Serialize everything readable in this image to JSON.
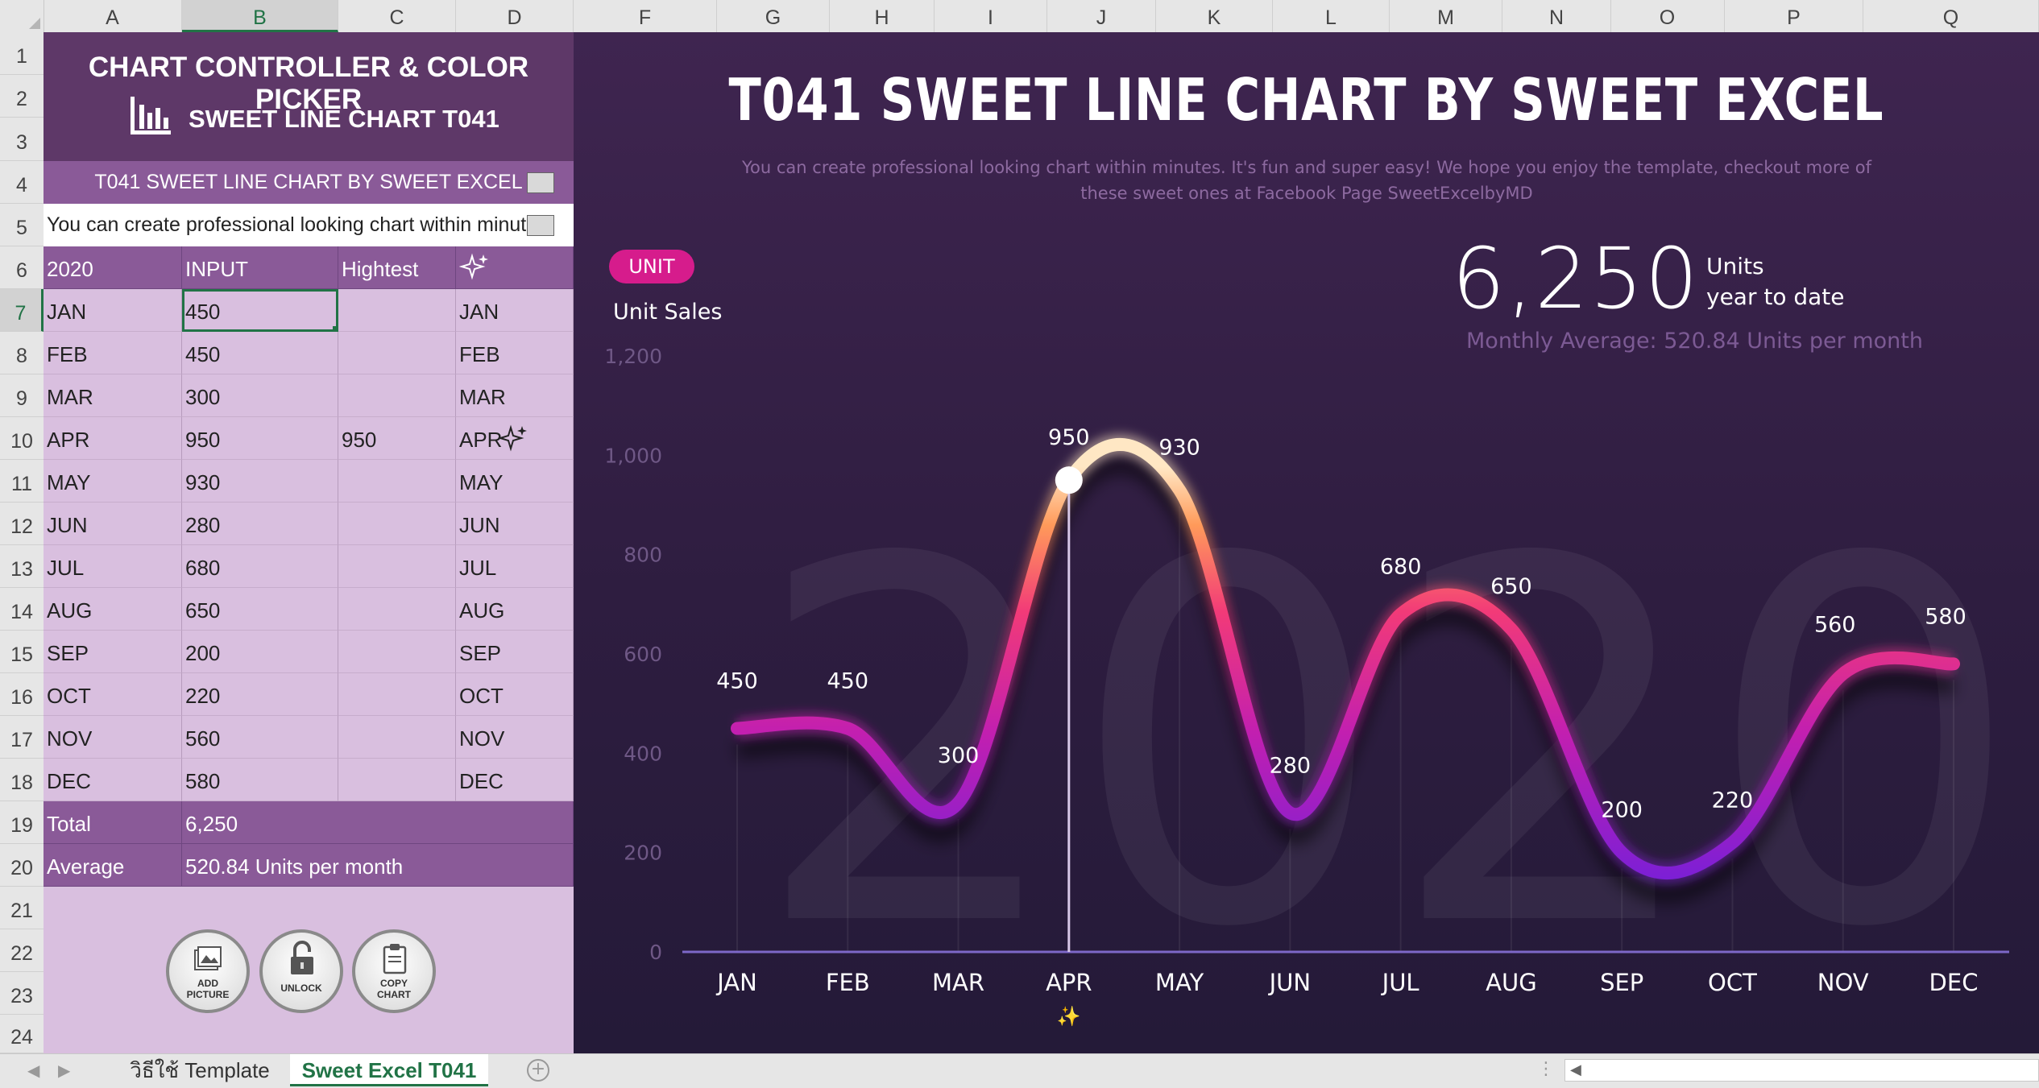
{
  "columns": [
    "A",
    "B",
    "C",
    "D",
    "F",
    "G",
    "H",
    "I",
    "J",
    "K",
    "L",
    "M",
    "N",
    "O",
    "P",
    "Q"
  ],
  "rows": [
    "1",
    "2",
    "3",
    "4",
    "5",
    "6",
    "7",
    "8",
    "9",
    "10",
    "11",
    "12",
    "13",
    "14",
    "15",
    "16",
    "17",
    "18",
    "19",
    "20",
    "21",
    "22",
    "23",
    "24"
  ],
  "panel": {
    "title_line1": "CHART CONTROLLER & COLOR PICKER",
    "title_line2": "SWEET LINE CHART T041",
    "row4": "T041 SWEET LINE CHART BY SWEET EXCEL",
    "row5": "You can create professional looking chart within minutes",
    "headers": [
      "2020",
      "INPUT",
      "Hightest",
      ""
    ],
    "table": [
      {
        "month": "JAN",
        "input": "450",
        "highest": "",
        "label": "JAN"
      },
      {
        "month": "FEB",
        "input": "450",
        "highest": "",
        "label": "FEB"
      },
      {
        "month": "MAR",
        "input": "300",
        "highest": "",
        "label": "MAR"
      },
      {
        "month": "APR",
        "input": "950",
        "highest": "950",
        "label": "APR"
      },
      {
        "month": "MAY",
        "input": "930",
        "highest": "",
        "label": "MAY"
      },
      {
        "month": "JUN",
        "input": "280",
        "highest": "",
        "label": "JUN"
      },
      {
        "month": "JUL",
        "input": "680",
        "highest": "",
        "label": "JUL"
      },
      {
        "month": "AUG",
        "input": "650",
        "highest": "",
        "label": "AUG"
      },
      {
        "month": "SEP",
        "input": "200",
        "highest": "",
        "label": "SEP"
      },
      {
        "month": "OCT",
        "input": "220",
        "highest": "",
        "label": "OCT"
      },
      {
        "month": "NOV",
        "input": "560",
        "highest": "",
        "label": "NOV"
      },
      {
        "month": "DEC",
        "input": "580",
        "highest": "",
        "label": "DEC"
      }
    ],
    "total_label": "Total",
    "total_value": "6,250",
    "average_label": "Average",
    "average_value": "520.84 Units per month",
    "buttons": [
      {
        "label1": "ADD",
        "label2": "PICTURE",
        "icon": "picture-icon"
      },
      {
        "label1": "UNLOCK",
        "label2": "",
        "icon": "lock-icon"
      },
      {
        "label1": "COPY",
        "label2": "CHART",
        "icon": "clipboard-icon"
      }
    ]
  },
  "chart_header": {
    "title": "T041 SWEET LINE CHART BY SWEET EXCEL",
    "subtitle": "You can create professional looking chart within minutes. It's fun and super easy! We hope you enjoy the template, checkout more of these sweet ones at Facebook Page SweetExcelbyMD",
    "unit_pill": "UNIT",
    "unit_sales": "Unit Sales",
    "big_number": "6,250",
    "units_line1": "Units",
    "units_line2": "year to date",
    "monthly_average": "Monthly Average:  520.84 Units per month",
    "watermark": "2020",
    "highlight_marker": "✨"
  },
  "chart_data": {
    "type": "line",
    "categories": [
      "JAN",
      "FEB",
      "MAR",
      "APR",
      "MAY",
      "JUN",
      "JUL",
      "AUG",
      "SEP",
      "OCT",
      "NOV",
      "DEC"
    ],
    "values": [
      450,
      450,
      300,
      950,
      930,
      280,
      680,
      650,
      200,
      220,
      560,
      580
    ],
    "ylabel": "Unit Sales",
    "ylim": [
      0,
      1200
    ],
    "yticks": [
      0,
      200,
      400,
      600,
      800,
      1000,
      1200
    ],
    "ytick_labels": [
      "0",
      "200",
      "400",
      "600",
      "800",
      "1,000",
      "1,200"
    ],
    "highlight_index": 3,
    "grid": false,
    "colors": {
      "low": "#6a1fe0",
      "mid": "#e0208a",
      "high": "#ffd9a0"
    }
  },
  "tabs": {
    "sheet1": "วิธีใช้ Template",
    "sheet2": "Sweet Excel T041"
  },
  "colors": {
    "panel_dark": "#5e3868",
    "panel_mid": "#8a5a98",
    "panel_light": "#d9bfdf",
    "excel_green": "#217346",
    "unit_pill": "#d61c8c"
  }
}
